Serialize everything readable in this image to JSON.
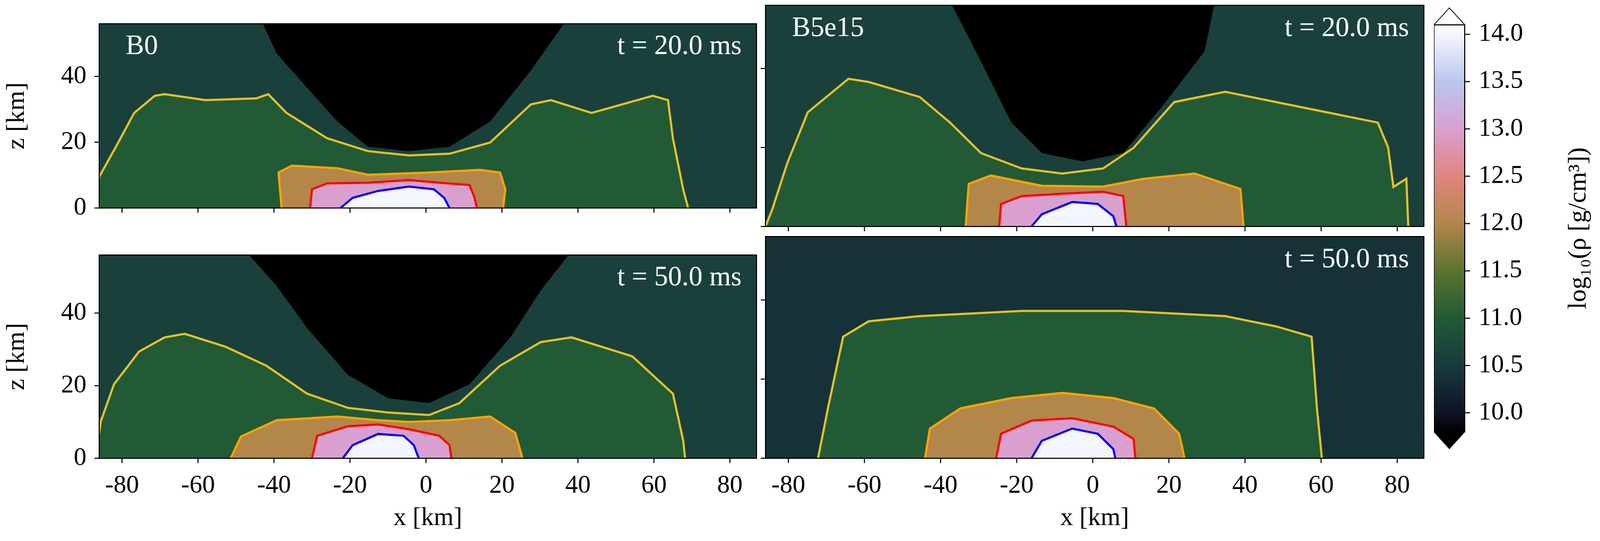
{
  "chart_data": [
    {
      "type": "contour",
      "title": "B0",
      "annotation": "t = 20.0 ms",
      "ylabel": "z [km]",
      "xlim": [
        -86,
        87
      ],
      "ylim": [
        0,
        56
      ],
      "xticks": [
        -80,
        -60,
        -40,
        -20,
        0,
        20,
        40,
        60,
        80
      ],
      "yticks": [
        0,
        20,
        40
      ],
      "tick_labels": "y",
      "ambient": 10.6,
      "regions": [
        {
          "value": 9.7,
          "x": [
            -43.3,
            -39.3,
            -31.3,
            -23.3,
            -15.3,
            -4.5,
            6.2,
            16.9,
            27.6,
            36.9
          ],
          "y": [
            57,
            47,
            36.6,
            26.3,
            18.6,
            17.3,
            18.6,
            26.3,
            41.8,
            57
          ]
        }
      ],
      "series": [
        {
          "level": 11,
          "color": "#e6c229",
          "x": [
            -87,
            -86,
            -81.6,
            -76.8,
            -71.4,
            -68.8,
            -58,
            -44.7,
            -41.5,
            -36.7,
            -26,
            -15.3,
            -4.5,
            6.2,
            16.9,
            27.6,
            32.9,
            43.6,
            59.7,
            63.7,
            65,
            67.7,
            69
          ],
          "y": [
            0,
            9.5,
            18.6,
            28.9,
            34.1,
            34.6,
            32.8,
            33.3,
            34.6,
            28.9,
            21.2,
            17.3,
            16,
            16.5,
            19.9,
            31.5,
            32.8,
            28.9,
            34.1,
            32.8,
            21.2,
            5.7,
            0
          ]
        },
        {
          "level": 12,
          "color": "#ffa500",
          "x": [
            -38,
            -38.8,
            -35.3,
            -23.3,
            -15.3,
            0.8,
            14.2,
            19.5,
            20.9,
            20.3
          ],
          "y": [
            0,
            10.8,
            12.9,
            12.1,
            10.1,
            10.8,
            11.6,
            10.8,
            5.7,
            0
          ]
        },
        {
          "level": 13,
          "color": "#ff0000",
          "x": [
            -30.5,
            -30,
            -26,
            -15.3,
            -4.5,
            3.5,
            11.5,
            12.8,
            13.4
          ],
          "y": [
            0,
            5.7,
            7.5,
            7.7,
            8.5,
            7.7,
            7,
            3.1,
            0
          ]
        },
        {
          "level": 14,
          "color": "#0000ff",
          "x": [
            -22.5,
            -19.3,
            -12.6,
            -4.5,
            2.1,
            4.8,
            6.2
          ],
          "y": [
            0,
            3.1,
            5.2,
            6.5,
            5.7,
            3.1,
            0
          ]
        }
      ]
    },
    {
      "type": "contour",
      "title": "B5e15",
      "annotation": "t = 20.0 ms",
      "xlim": [
        -86,
        87
      ],
      "ylim": [
        0,
        56
      ],
      "xticks": [
        -80,
        -60,
        -40,
        -20,
        0,
        20,
        40,
        60,
        80
      ],
      "yticks": [
        0,
        20,
        40
      ],
      "tick_labels": false,
      "ambient": 10.6,
      "regions": [
        {
          "value": 9.7,
          "x": [
            -37.5,
            -29.4,
            -21.4,
            -13.4,
            -2.7,
            8,
            18.7,
            29.4,
            32.1
          ],
          "y": [
            57,
            41.8,
            26.3,
            18.6,
            16.5,
            18.6,
            31,
            44.4,
            57
          ]
        }
      ],
      "series": [
        {
          "level": 11,
          "color": "#e6c229",
          "x": [
            -86,
            -84.2,
            -80.3,
            -74.9,
            -64.2,
            -58.9,
            -45.5,
            -37.5,
            -29.4,
            -18.7,
            -8,
            2.7,
            10.7,
            21.4,
            34.8,
            48.2,
            61.5,
            74.9,
            77.6,
            79,
            82.4,
            82.9
          ],
          "y": [
            0,
            4.4,
            16,
            28.9,
            37.4,
            36.6,
            32.8,
            26.3,
            18.6,
            14.7,
            13.4,
            14.7,
            19.9,
            31.5,
            34.1,
            31.5,
            28.9,
            26.3,
            20,
            10,
            12.1,
            0
          ]
        },
        {
          "level": 12,
          "color": "#ffa500",
          "x": [
            -33.4,
            -32.6,
            -26.8,
            -13.4,
            2.7,
            13.4,
            26.8,
            38.8,
            39.6
          ],
          "y": [
            0,
            10.8,
            12.9,
            10.3,
            10.1,
            12.1,
            13.4,
            9.5,
            0
          ]
        },
        {
          "level": 13,
          "color": "#ff0000",
          "x": [
            -24.6,
            -24.1,
            -18.7,
            -8,
            2.7,
            8,
            8.8
          ],
          "y": [
            0,
            5.7,
            7.7,
            8.3,
            8.8,
            7.7,
            0
          ]
        },
        {
          "level": 14,
          "color": "#0000ff",
          "x": [
            -16.1,
            -13.4,
            -5.4,
            1.3,
            5.4,
            6.2
          ],
          "y": [
            0,
            3.1,
            6.2,
            5.7,
            2.6,
            0
          ]
        }
      ]
    },
    {
      "type": "contour",
      "annotation": "t = 50.0 ms",
      "xlabel": "x [km]",
      "ylabel": "z [km]",
      "xlim": [
        -86,
        87
      ],
      "ylim": [
        0,
        56
      ],
      "xticks": [
        -80,
        -60,
        -40,
        -20,
        0,
        20,
        40,
        60,
        80
      ],
      "yticks": [
        0,
        20,
        40
      ],
      "tick_labels": true,
      "ambient": 10.6,
      "regions": [
        {
          "value": 9.7,
          "x": [
            -47.4,
            -39.3,
            -31.3,
            -20.6,
            -9.9,
            0.8,
            11.5,
            22.2,
            30.2,
            38.3
          ],
          "y": [
            57,
            47.5,
            35.9,
            23,
            16.5,
            15.2,
            20.4,
            33.3,
            46.2,
            57
          ]
        }
      ],
      "series": [
        {
          "level": 11,
          "color": "#e6c229",
          "x": [
            -87,
            -85.6,
            -82.1,
            -75.5,
            -68.8,
            -63.5,
            -52.7,
            -42,
            -31.3,
            -20.6,
            -9.9,
            0.8,
            8.8,
            19.5,
            30.2,
            38.3,
            54.3,
            65,
            67.7,
            68.2
          ],
          "y": [
            0,
            10.1,
            20.4,
            29.4,
            33.3,
            34.3,
            30.7,
            25.5,
            17.8,
            13.9,
            12.6,
            11.9,
            15.2,
            25.5,
            32,
            33.3,
            28.1,
            17.8,
            4.9,
            0
          ]
        },
        {
          "level": 12,
          "color": "#ffa500",
          "x": [
            -51.4,
            -48.7,
            -39.3,
            -23.3,
            -12.6,
            -4.5,
            6.2,
            16.9,
            23.5,
            25.4
          ],
          "y": [
            0,
            6,
            10.5,
            11.5,
            10.5,
            10,
            10.5,
            11.5,
            7,
            0
          ]
        },
        {
          "level": 13,
          "color": "#ff0000",
          "x": [
            -30,
            -28.6,
            -20.6,
            -12.6,
            -4.5,
            3.5,
            6.2,
            6.7
          ],
          "y": [
            0,
            6.2,
            8.8,
            9.3,
            8,
            6.2,
            3.6,
            0
          ]
        },
        {
          "level": 14,
          "color": "#0000ff",
          "x": [
            -21.9,
            -19.3,
            -12.6,
            -5.9,
            -3.2,
            -1.9
          ],
          "y": [
            0,
            3.6,
            6.7,
            6.2,
            3.6,
            0
          ]
        }
      ]
    },
    {
      "type": "contour",
      "annotation": "t = 50.0 ms",
      "xlabel": "x [km]",
      "xlim": [
        -86,
        87
      ],
      "ylim": [
        0,
        56
      ],
      "xticks": [
        -80,
        -60,
        -40,
        -20,
        0,
        20,
        40,
        60,
        80
      ],
      "yticks": [
        0,
        20,
        40
      ],
      "tick_labels": "x",
      "ambient": 10.4,
      "series": [
        {
          "level": 11,
          "color": "#e6c229",
          "x": [
            -72.2,
            -69.6,
            -65.6,
            -58.9,
            -45.5,
            -18.7,
            8,
            34.8,
            48.2,
            57.5,
            58.9,
            60.2
          ],
          "y": [
            0,
            12.6,
            30.7,
            34.6,
            35.9,
            37.2,
            37.2,
            35.9,
            33.3,
            30.7,
            12.6,
            0
          ]
        },
        {
          "level": 12,
          "color": "#ffa500",
          "x": [
            -44.1,
            -42.8,
            -34.8,
            -21.4,
            -8,
            5.4,
            16.1,
            22.7,
            24.1
          ],
          "y": [
            0,
            7.5,
            12.6,
            15.2,
            16.5,
            15.2,
            12.6,
            6.2,
            0
          ]
        },
        {
          "level": 13,
          "color": "#ff0000",
          "x": [
            -25.4,
            -24.1,
            -16.1,
            -5.4,
            5.4,
            10.7,
            11.2
          ],
          "y": [
            0,
            6.2,
            9.5,
            10.1,
            8,
            4.9,
            0
          ]
        },
        {
          "level": 14,
          "color": "#0000ff",
          "x": [
            -16.1,
            -13.4,
            -5.4,
            1.3,
            5.4,
            5.9
          ],
          "y": [
            0,
            4.4,
            7.5,
            6.2,
            2.3,
            0
          ]
        }
      ]
    },
    {
      "type": "colorbar",
      "ylabel": "log₁₀(ρ [g/cm³])",
      "ylim": [
        9.8,
        14.1
      ],
      "yticks": [
        {
          "value": 10,
          "label": "10.0"
        },
        {
          "value": 10.5,
          "label": "10.5"
        },
        {
          "value": 11,
          "label": "11.0"
        },
        {
          "value": 11.5,
          "label": "11.5"
        },
        {
          "value": 12,
          "label": "12.0"
        },
        {
          "value": 12.5,
          "label": "12.5"
        },
        {
          "value": 13,
          "label": "13.0"
        },
        {
          "value": 13.5,
          "label": "13.5"
        },
        {
          "value": 14,
          "label": "14.0"
        }
      ],
      "colorscale": [
        [
          9.8,
          "#000000"
        ],
        [
          10.0,
          "#0e1424"
        ],
        [
          10.5,
          "#183a3e"
        ],
        [
          11.0,
          "#215a35"
        ],
        [
          11.5,
          "#5b7330"
        ],
        [
          12.0,
          "#b3864a"
        ],
        [
          12.5,
          "#e0857f"
        ],
        [
          13.0,
          "#d9a0cf"
        ],
        [
          13.5,
          "#b9c7f0"
        ],
        [
          14.1,
          "#ffffff"
        ]
      ]
    }
  ]
}
